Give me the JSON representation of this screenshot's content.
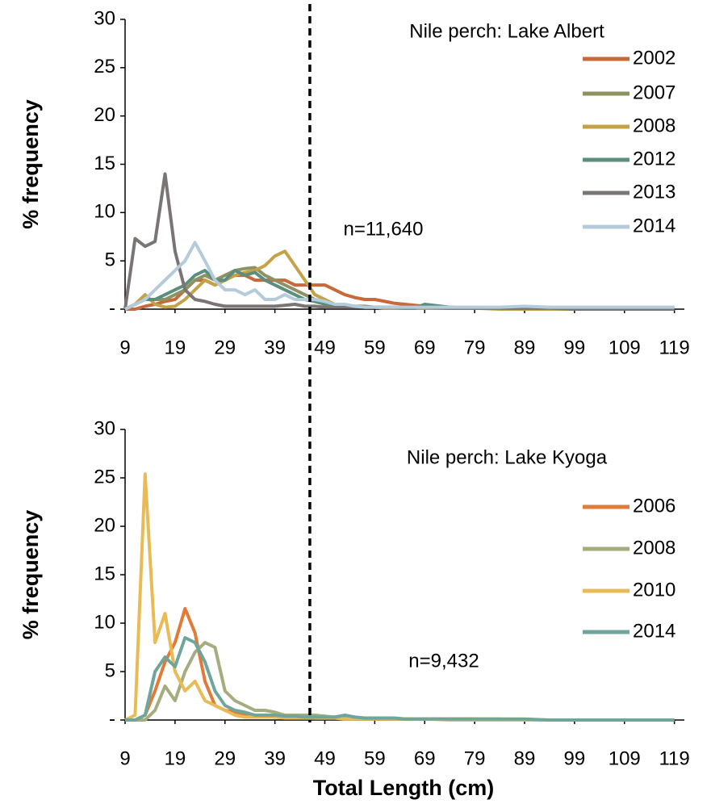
{
  "chart_data": [
    {
      "type": "line",
      "title": "Nile perch: Lake Albert",
      "y_label": "% frequency",
      "annotation": "n=11,640",
      "vline": 46,
      "x": [
        9,
        11,
        13,
        15,
        17,
        19,
        21,
        23,
        25,
        27,
        29,
        31,
        33,
        35,
        37,
        39,
        41,
        43,
        45,
        47,
        49,
        51,
        53,
        55,
        57,
        59,
        61,
        63,
        65,
        67,
        69,
        74,
        79,
        84,
        89,
        94,
        99,
        104,
        109,
        114,
        119
      ],
      "xlim": [
        9,
        121
      ],
      "xticks": [
        9,
        19,
        29,
        39,
        49,
        59,
        69,
        79,
        89,
        99,
        109,
        119
      ],
      "ylim": [
        0,
        30
      ],
      "yticks": [
        {
          "value": 0,
          "label": "-"
        },
        5,
        10,
        15,
        20,
        25,
        30
      ],
      "grid": false,
      "legend": "right",
      "series": [
        {
          "name": "2002",
          "color": "#c8693a",
          "values": [
            0,
            0,
            0.3,
            0.5,
            0.8,
            1,
            2,
            3,
            3,
            2.5,
            3,
            3.5,
            3.5,
            3,
            3,
            3,
            3,
            2.5,
            2.5,
            2.5,
            2.5,
            2,
            1.5,
            1.2,
            1,
            1,
            0.8,
            0.6,
            0.5,
            0.4,
            0.3,
            0.2,
            0.1,
            0.1,
            0.1,
            0.1,
            0.1,
            0.1,
            0.1,
            0.1,
            0.1
          ]
        },
        {
          "name": "2007",
          "color": "#8e9262",
          "values": [
            0,
            0.5,
            1,
            1,
            1,
            1.5,
            2,
            3,
            3.5,
            3,
            3.5,
            4,
            4.2,
            4.3,
            3.5,
            3,
            2.5,
            2,
            1.5,
            1,
            0.8,
            0.5,
            0.4,
            0.3,
            0.3,
            0.2,
            0.2,
            0.2,
            0.1,
            0.1,
            0.1,
            0.1,
            0.1,
            0.1,
            0,
            0,
            0,
            0,
            0,
            0,
            0
          ]
        },
        {
          "name": "2008",
          "color": "#c4a247",
          "values": [
            0,
            0.5,
            1.5,
            0.5,
            0.2,
            0.3,
            1,
            2,
            3,
            2.5,
            3,
            3.5,
            3.8,
            4,
            4.5,
            5.5,
            6,
            4.5,
            3,
            1.5,
            1,
            0.5,
            0.4,
            0.3,
            0.2,
            0.2,
            0.1,
            0.1,
            0.1,
            0.1,
            0.1,
            0.1,
            0.1,
            0,
            0,
            0,
            0,
            0,
            0,
            0,
            0
          ]
        },
        {
          "name": "2012",
          "color": "#5b8e7d",
          "values": [
            0,
            0.5,
            1,
            1,
            1.5,
            2,
            2.5,
            3.5,
            4,
            3,
            3,
            4,
            3.5,
            3.8,
            3,
            2.5,
            2,
            1.5,
            1,
            0.8,
            0.5,
            0.4,
            0.3,
            0.3,
            0.2,
            0.2,
            0.2,
            0.2,
            0.1,
            0.1,
            0.5,
            0.2,
            0.1,
            0.1,
            0.1,
            0.1,
            0.1,
            0.1,
            0.1,
            0.1,
            0.1
          ]
        },
        {
          "name": "2013",
          "color": "#7b7474",
          "values": [
            0,
            7.3,
            6.5,
            7,
            14,
            6,
            2,
            1,
            0.8,
            0.5,
            0.3,
            0.3,
            0.3,
            0.3,
            0.3,
            0.3,
            0.4,
            0.5,
            0.3,
            0.3,
            0.2,
            0.2,
            0.2,
            0.2,
            0.2,
            0.2,
            0.2,
            0.2,
            0.2,
            0.2,
            0.2,
            0.1,
            0.1,
            0.1,
            0.1,
            0.1,
            0,
            0,
            0,
            0,
            0
          ]
        },
        {
          "name": "2014",
          "color": "#b4cbdc",
          "values": [
            0,
            0.5,
            1,
            2,
            3,
            4,
            5,
            6.9,
            5,
            3,
            2,
            2,
            1.5,
            2,
            1,
            1,
            1.5,
            1,
            1,
            1,
            0.8,
            0.5,
            0.5,
            0.3,
            0.2,
            0.2,
            0.2,
            0.2,
            0.2,
            0.2,
            0.2,
            0.2,
            0.2,
            0.2,
            0.3,
            0.2,
            0.2,
            0.2,
            0.2,
            0.2,
            0.2
          ]
        }
      ]
    },
    {
      "type": "line",
      "title": "Nile perch: Lake Kyoga",
      "y_label": "% frequency",
      "x_label": "Total Length (cm)",
      "annotation": "n=9,432",
      "vline": 46,
      "x": [
        9,
        11,
        13,
        15,
        17,
        19,
        21,
        23,
        25,
        27,
        29,
        31,
        33,
        35,
        37,
        39,
        41,
        43,
        45,
        47,
        49,
        51,
        53,
        55,
        57,
        59,
        61,
        63,
        65,
        67,
        69,
        74,
        79,
        84,
        89,
        94,
        99,
        104,
        109,
        114,
        119
      ],
      "xlim": [
        9,
        121
      ],
      "xticks": [
        9,
        19,
        29,
        39,
        49,
        59,
        69,
        79,
        89,
        99,
        109,
        119
      ],
      "ylim": [
        0,
        30
      ],
      "yticks": [
        {
          "value": 0,
          "label": "-"
        },
        5,
        10,
        15,
        20,
        25,
        30
      ],
      "grid": false,
      "legend": "right",
      "series": [
        {
          "name": "2006",
          "color": "#e07b39",
          "values": [
            0,
            0,
            0.5,
            3,
            6,
            8,
            11.5,
            9,
            4,
            1.5,
            1,
            0.8,
            0.5,
            0.5,
            0.4,
            0.3,
            0.3,
            0.3,
            0.3,
            0.2,
            0.2,
            0.2,
            0.2,
            0.2,
            0.2,
            0.1,
            0.1,
            0.1,
            0.1,
            0.1,
            0.1,
            0.1,
            0.1,
            0,
            0,
            0,
            0,
            0,
            0,
            0,
            0
          ]
        },
        {
          "name": "2008",
          "color": "#a5ac7e",
          "values": [
            0,
            0,
            0,
            1,
            3.5,
            2,
            5,
            7,
            8,
            7.5,
            3,
            2,
            1.5,
            1,
            1,
            0.8,
            0.5,
            0.5,
            0.5,
            0.5,
            0.4,
            0.3,
            0.3,
            0.3,
            0.2,
            0.2,
            0.2,
            0.2,
            0.1,
            0.1,
            0.1,
            0.1,
            0.1,
            0.1,
            0,
            0,
            0,
            0,
            0,
            0,
            0
          ]
        },
        {
          "name": "2010",
          "color": "#e9bb57",
          "values": [
            0,
            0.5,
            25.4,
            8,
            11,
            5,
            3,
            4,
            2,
            1.5,
            1,
            0.5,
            0.3,
            0.3,
            0.3,
            0.3,
            0.2,
            0.2,
            0.2,
            0.2,
            0.2,
            0.2,
            0.1,
            0.1,
            0.1,
            0.1,
            0.1,
            0.1,
            0.1,
            0.1,
            0.1,
            0,
            0,
            0,
            0,
            0,
            0,
            0,
            0,
            0,
            0
          ]
        },
        {
          "name": "2014",
          "color": "#6fa59b",
          "values": [
            0,
            0,
            0.5,
            5,
            6.5,
            5.5,
            8.5,
            8,
            6,
            3,
            1.5,
            1,
            0.8,
            0.5,
            0.5,
            0.5,
            0.4,
            0.4,
            0.3,
            0.3,
            0.3,
            0.3,
            0.5,
            0.3,
            0.2,
            0.2,
            0.2,
            0.2,
            0.1,
            0.1,
            0.1,
            0.1,
            0.1,
            0.1,
            0.1,
            0,
            0,
            0,
            0,
            0,
            0
          ]
        }
      ]
    }
  ]
}
